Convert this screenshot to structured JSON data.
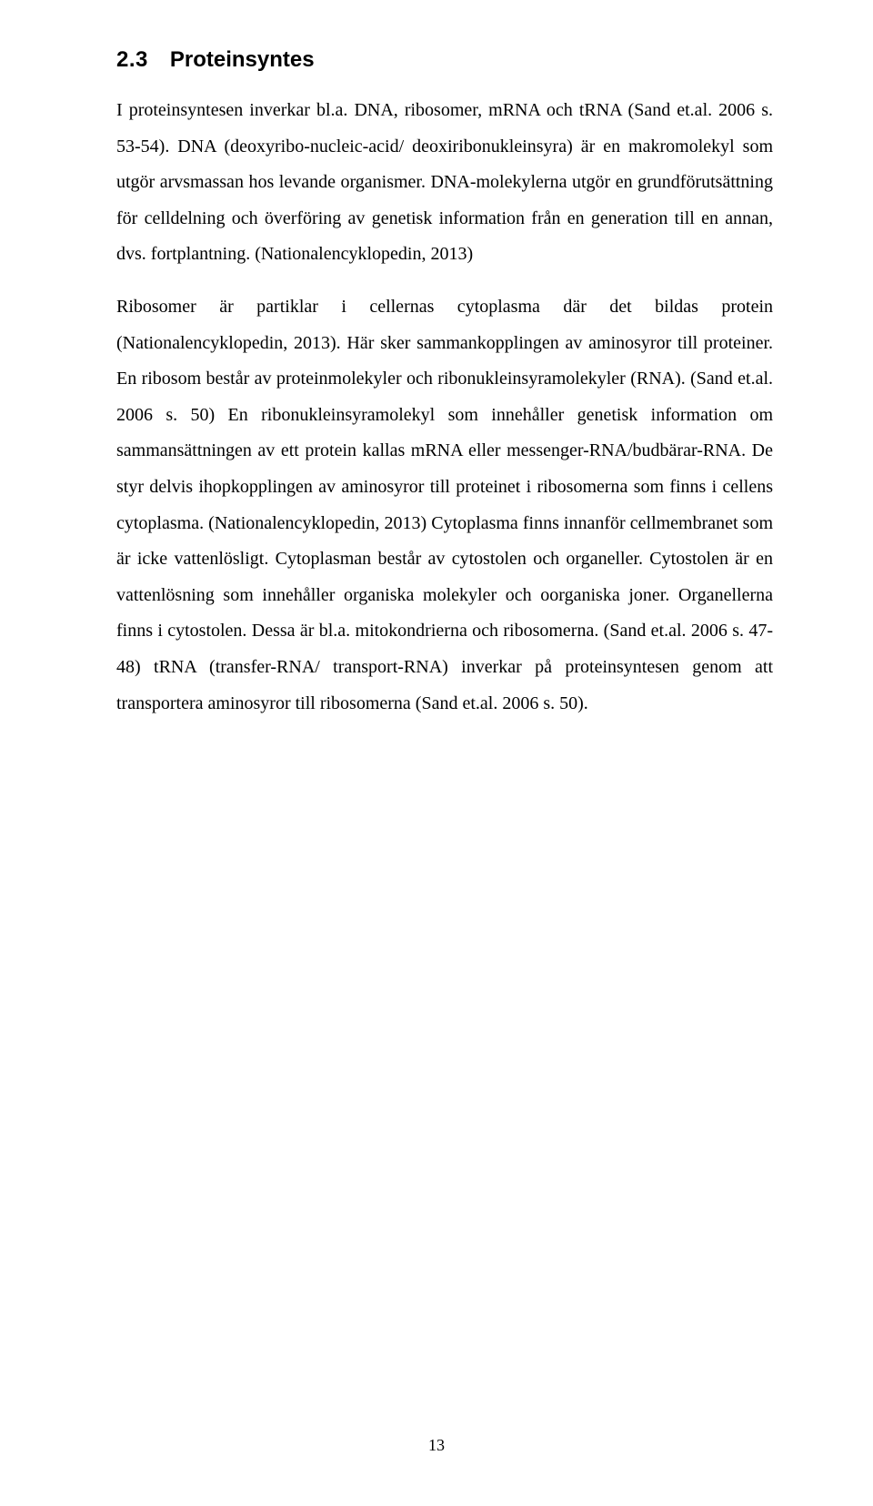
{
  "page": {
    "number": "13",
    "background_color": "#ffffff",
    "text_color": "#000000"
  },
  "heading": {
    "number": "2.3",
    "title": "Proteinsyntes",
    "font_family": "Arial",
    "font_weight": "bold",
    "font_size_pt": 14
  },
  "typography": {
    "body_font_family": "Times New Roman",
    "body_font_size_pt": 12,
    "line_spacing": 1.98,
    "alignment": "justify"
  },
  "paragraphs": {
    "p1": "I proteinsyntesen inverkar bl.a. DNA, ribosomer, mRNA och tRNA (Sand et.al. 2006 s. 53-54). DNA (deoxyribo-nucleic-acid/ deoxiribonukleinsyra) är en makromolekyl som utgör arvsmassan hos levande organismer. DNA-molekylerna utgör en grundförutsättning för celldelning och överföring av genetisk information från en generation till en annan, dvs. fortplantning. (Nationalencyklopedin, 2013)",
    "p2": "Ribosomer är partiklar i cellernas cytoplasma där det bildas protein (Nationalencyklopedin, 2013). Här sker sammankopplingen av aminosyror till proteiner. En ribosom består av proteinmolekyler och ribonukleinsyramolekyler (RNA). (Sand et.al. 2006 s. 50) En ribonukleinsyramolekyl som innehåller genetisk information om sammansättningen av ett protein kallas mRNA eller messenger-RNA/budbärar-RNA. De styr delvis ihopkopplingen av aminosyror till proteinet i ribosomerna som finns i cellens cytoplasma. (Nationalencyklopedin, 2013) Cytoplasma finns innanför cellmembranet som är icke vattenlösligt. Cytoplasman består av cytostolen och organeller. Cytostolen är en vattenlösning som innehåller organiska molekyler och oorganiska joner. Organellerna finns i cytostolen. Dessa är bl.a. mitokondrierna och ribosomerna. (Sand et.al. 2006 s. 47-48) tRNA (transfer-RNA/ transport-RNA) inverkar på proteinsyntesen genom att transportera aminosyror till ribosomerna (Sand et.al. 2006 s. 50)."
  }
}
